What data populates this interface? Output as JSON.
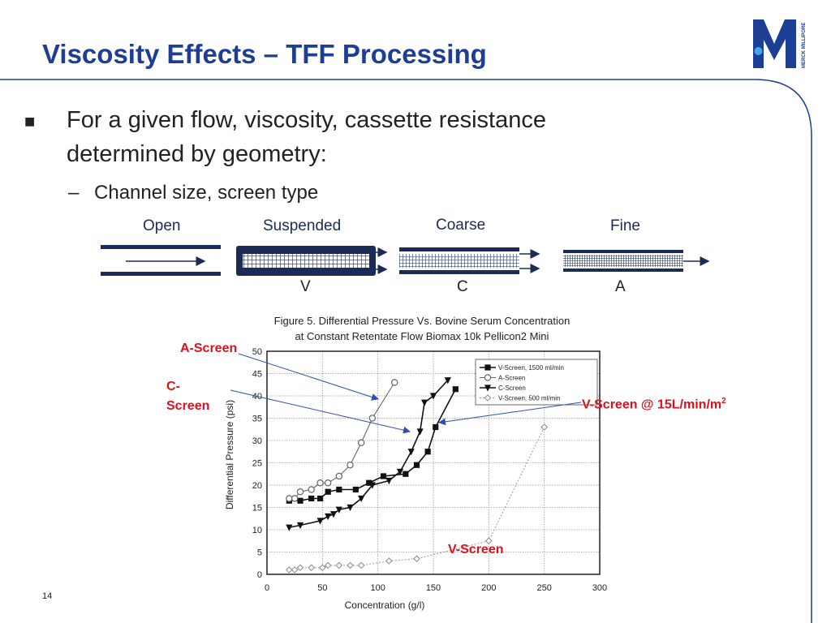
{
  "title": "Viscosity Effects – TFF Processing",
  "bullet1": {
    "marker": "■",
    "text": "For a given flow, viscosity, cassette resistance determined by geometry:"
  },
  "bullet2": {
    "marker": "–",
    "text": "Channel size, screen type"
  },
  "channels": [
    {
      "label": "Open",
      "letter": ""
    },
    {
      "label": "Suspended",
      "letter": "V"
    },
    {
      "label": "Coarse",
      "letter": "C"
    },
    {
      "label": "Fine",
      "letter": "A"
    }
  ],
  "logo": {
    "letter": "M",
    "vertical_text": "MERCK MILLIPORE"
  },
  "annotations": {
    "a_screen": "A-Screen",
    "c_screen": "C-\nScreen",
    "v_screen_15": "V-Screen @ 15L/min/m",
    "v_screen_15_sup": "2",
    "v_screen_low": "V-Screen"
  },
  "page_number": "14",
  "colors": {
    "title": "#1c3f95",
    "annotation": "#e0101a",
    "frame_line": "#1c3f95"
  },
  "chart_data": {
    "type": "line",
    "title": "Figure 5. Differential Pressure Vs. Bovine Serum Concentration",
    "subtitle": "at Constant Retentate Flow Biomax 10k Pellicon2 Mini",
    "xlabel": "Concentration (g/l)",
    "ylabel": "Differential Pressure (psi)",
    "xlim": [
      0,
      300
    ],
    "ylim": [
      0,
      50
    ],
    "xticks": [
      "0",
      "50",
      "100",
      "150",
      "200",
      "250",
      "300"
    ],
    "yticks": [
      "0",
      "5",
      "10",
      "15",
      "20",
      "25",
      "30",
      "35",
      "40",
      "45",
      "50"
    ],
    "grid": true,
    "legend_position": "top-right",
    "series": [
      {
        "name": "V-Screen, 1500 ml/min",
        "marker": "square",
        "x": [
          20,
          30,
          40,
          48,
          55,
          65,
          80,
          92,
          105,
          125,
          135,
          145,
          152,
          170
        ],
        "y": [
          16.5,
          16.5,
          17,
          17,
          18.5,
          19,
          19,
          20.5,
          22,
          22.5,
          24.5,
          27.5,
          33,
          41.5
        ]
      },
      {
        "name": "A-Screen",
        "marker": "circle",
        "x": [
          20,
          25,
          30,
          40,
          48,
          55,
          65,
          75,
          85,
          95,
          115
        ],
        "y": [
          17,
          17,
          18.5,
          19,
          20.5,
          20.5,
          22,
          24.5,
          29.5,
          35,
          43
        ]
      },
      {
        "name": "C-Screen",
        "marker": "tri-down",
        "x": [
          20,
          30,
          48,
          55,
          60,
          65,
          75,
          85,
          95,
          110,
          120,
          130,
          138,
          142,
          150,
          163
        ],
        "y": [
          10.5,
          11,
          12,
          13,
          13.5,
          14.5,
          15,
          17,
          20,
          21,
          23,
          27.5,
          32,
          38.5,
          40,
          43.5
        ]
      },
      {
        "name": "V-Screen, 500 ml/min",
        "marker": "diamond",
        "x": [
          20,
          25,
          30,
          40,
          50,
          55,
          65,
          75,
          85,
          110,
          135,
          200,
          250
        ],
        "y": [
          1,
          1,
          1.5,
          1.5,
          1.5,
          2,
          2,
          2,
          2,
          3,
          3.5,
          7.5,
          33
        ]
      }
    ]
  }
}
